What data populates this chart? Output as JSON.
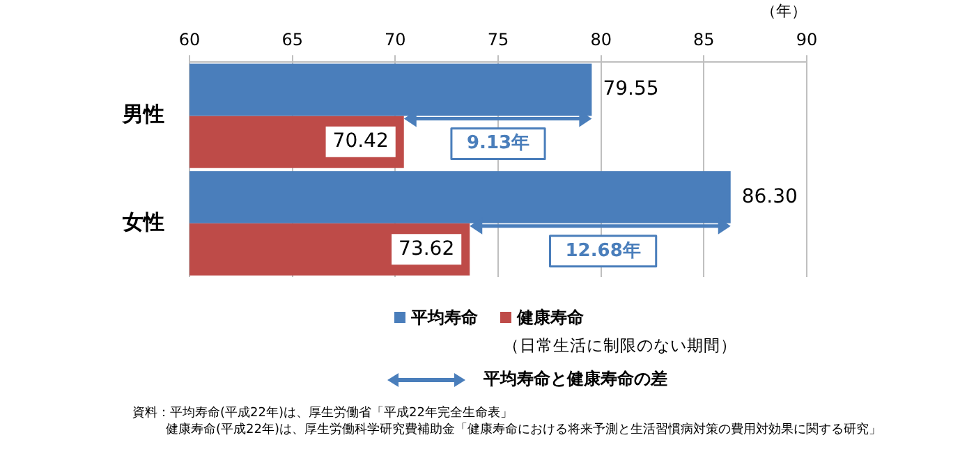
{
  "chart_data": {
    "type": "bar",
    "orientation": "horizontal",
    "xlabel": "（年）",
    "categories": [
      "男性",
      "女性"
    ],
    "series": [
      {
        "name": "平均寿命",
        "color": "#4a7ebb",
        "values": [
          79.55,
          86.3
        ],
        "value_labels": [
          "79.55",
          "86.30"
        ]
      },
      {
        "name": "健康寿命",
        "color": "#be4b48",
        "values": [
          70.42,
          73.62
        ],
        "value_labels": [
          "70.42",
          "73.62"
        ]
      }
    ],
    "xlim": [
      60,
      90
    ],
    "xticks": [
      60,
      65,
      70,
      75,
      80,
      85,
      90
    ],
    "grid": "x",
    "legend": "bottom",
    "annotations": [
      {
        "text": "9.13年",
        "x": 75,
        "y": "男性"
      },
      {
        "text": "12.68年",
        "x": 80.1,
        "y": "女性"
      },
      "（日常生活に制限のない期間）",
      "平均寿命と健康寿命の差",
      "資料：平均寿命(平成22年)は、厚生労働省「平成22年完全生命表」",
      "健康寿命(平成22年)は、厚生労働科学研究費補助金「健康寿命における将来予測と生活習慣病対策の費用対効果に関する研究」"
    ]
  }
}
